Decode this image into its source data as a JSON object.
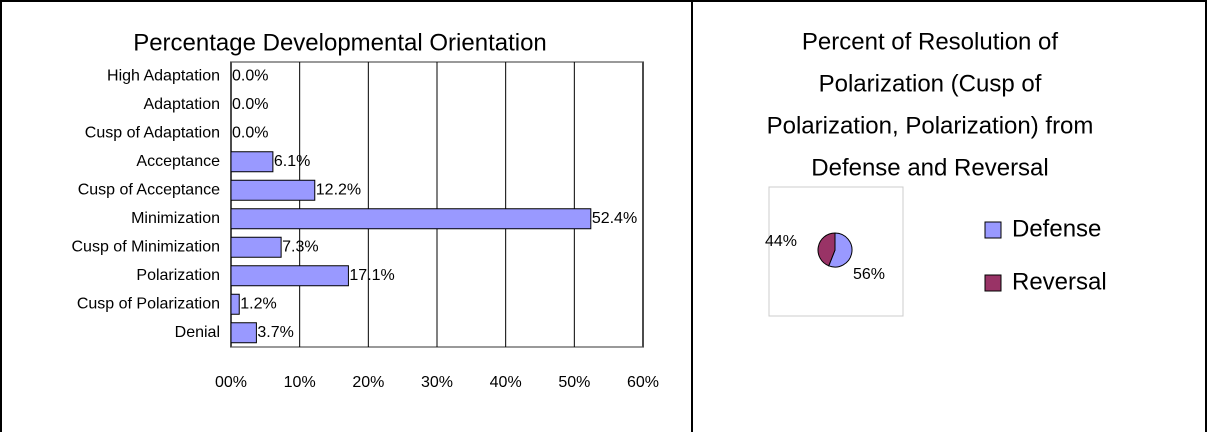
{
  "chart_data": [
    {
      "type": "barh",
      "title": "Percentage Developmental Orientation",
      "categories": [
        "High Adaptation",
        "Adaptation",
        "Cusp of Adaptation",
        "Acceptance",
        "Cusp of Acceptance",
        "Minimization",
        "Cusp of Minimization",
        "Polarization",
        "Cusp of Polarization",
        "Denial"
      ],
      "values": [
        0,
        0,
        0,
        6.1,
        12.2,
        52.4,
        7.3,
        17.1,
        1.2,
        3.7
      ],
      "value_labels": [
        "0.0%",
        "0.0%",
        "0.0%",
        "6.1%",
        "12.2%",
        "52.4%",
        "7.3%",
        "17.1%",
        "1.2%",
        "3.7%"
      ],
      "color": "#9999ff",
      "xlim": [
        0,
        60
      ],
      "xticks": [
        {
          "value": 0,
          "label": "00%"
        },
        {
          "value": 10,
          "label": "10%"
        },
        {
          "value": 20,
          "label": "20%"
        },
        {
          "value": 30,
          "label": "30%"
        },
        {
          "value": 40,
          "label": "40%"
        },
        {
          "value": 50,
          "label": "50%"
        },
        {
          "value": 60,
          "label": "60%"
        }
      ],
      "grid": true
    },
    {
      "type": "pie",
      "title": [
        "Percent of Resolution of",
        "Polarization (Cusp of",
        "Polarization, Polarization) from",
        "Defense and Reversal"
      ],
      "categories": [
        "Defense",
        "Reversal"
      ],
      "values": [
        56,
        44
      ],
      "value_labels": [
        "56%",
        "44%"
      ],
      "colors": [
        "#9999ff",
        "#993366"
      ],
      "legend": "right"
    }
  ]
}
